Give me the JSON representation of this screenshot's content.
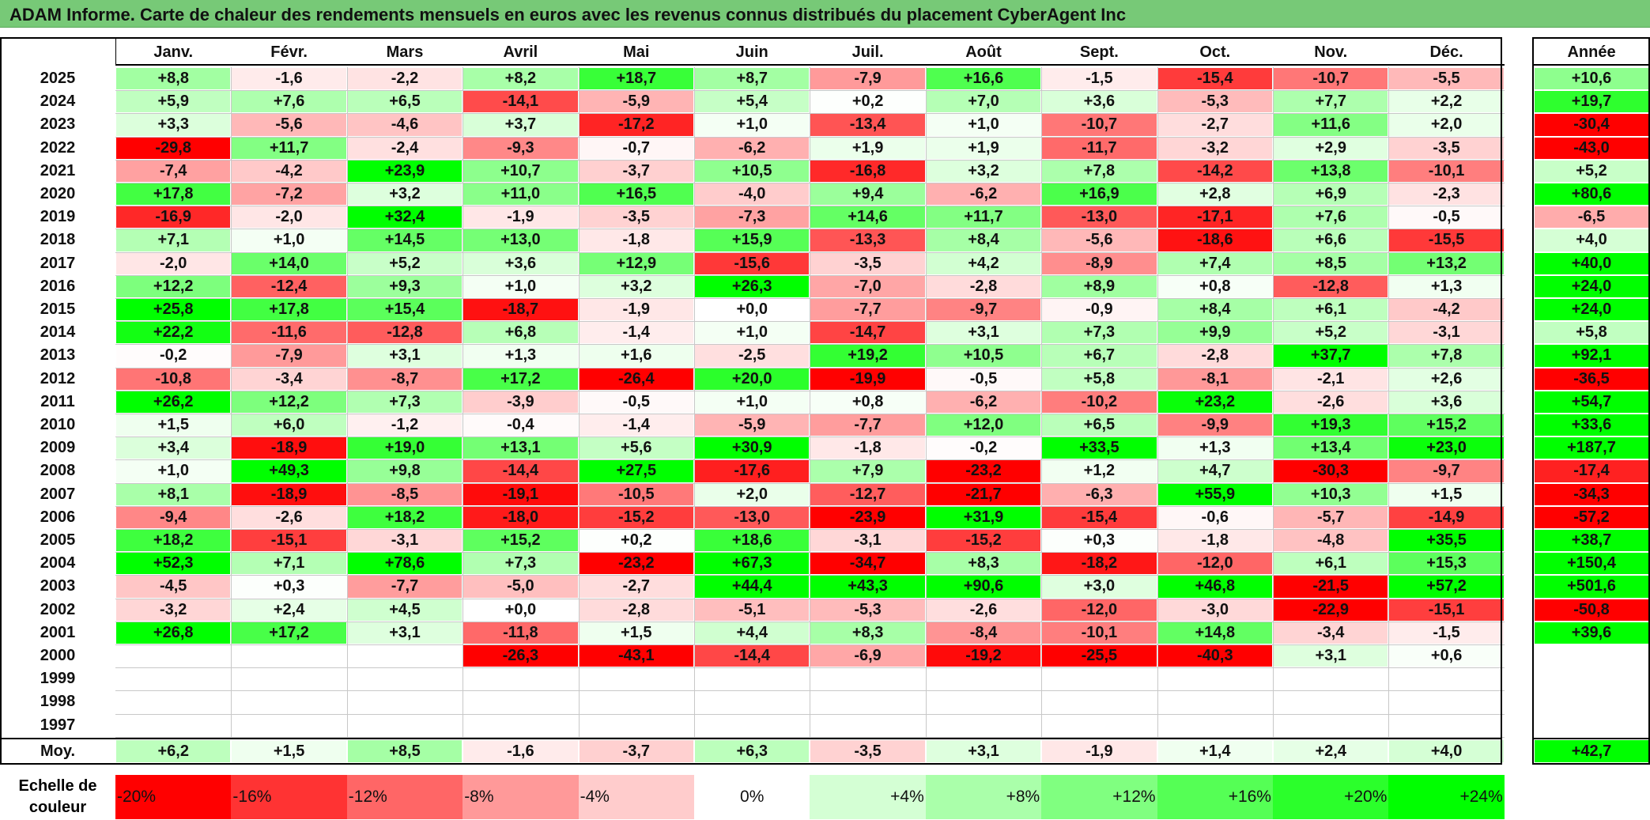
{
  "title": "ADAM Informe. Carte de chaleur des rendements mensuels en euros avec les revenus connus distribués du placement CyberAgent Inc",
  "chart_data": {
    "type": "heatmap",
    "months": [
      "Janv.",
      "Févr.",
      "Mars",
      "Avril",
      "Mai",
      "Juin",
      "Juil.",
      "Août",
      "Sept.",
      "Oct.",
      "Nov.",
      "Déc."
    ],
    "annual_header": "Année",
    "rows": [
      {
        "year": "2025",
        "values": [
          "+8,8",
          "-1,6",
          "-2,2",
          "+8,2",
          "+18,7",
          "+8,7",
          "-7,9",
          "+16,6",
          "-1,5",
          "-15,4",
          "-10,7",
          "-5,5"
        ],
        "annual": "+10,6"
      },
      {
        "year": "2024",
        "values": [
          "+5,9",
          "+7,6",
          "+6,5",
          "-14,1",
          "-5,9",
          "+5,4",
          "+0,2",
          "+7,0",
          "+3,6",
          "-5,3",
          "+7,7",
          "+2,2"
        ],
        "annual": "+19,7"
      },
      {
        "year": "2023",
        "values": [
          "+3,3",
          "-5,6",
          "-4,6",
          "+3,7",
          "-17,2",
          "+1,0",
          "-13,4",
          "+1,0",
          "-10,7",
          "-2,7",
          "+11,6",
          "+2,0"
        ],
        "annual": "-30,4"
      },
      {
        "year": "2022",
        "values": [
          "-29,8",
          "+11,7",
          "-2,4",
          "-9,3",
          "-0,7",
          "-6,2",
          "+1,9",
          "+1,9",
          "-11,7",
          "-3,2",
          "+2,9",
          "-3,5"
        ],
        "annual": "-43,0"
      },
      {
        "year": "2021",
        "values": [
          "-7,4",
          "-4,2",
          "+23,9",
          "+10,7",
          "-3,7",
          "+10,5",
          "-16,8",
          "+3,2",
          "+7,8",
          "-14,2",
          "+13,8",
          "-10,1"
        ],
        "annual": "+5,2"
      },
      {
        "year": "2020",
        "values": [
          "+17,8",
          "-7,2",
          "+3,2",
          "+11,0",
          "+16,5",
          "-4,0",
          "+9,4",
          "-6,2",
          "+16,9",
          "+2,8",
          "+6,9",
          "-2,3"
        ],
        "annual": "+80,6"
      },
      {
        "year": "2019",
        "values": [
          "-16,9",
          "-2,0",
          "+32,4",
          "-1,9",
          "-3,5",
          "-7,3",
          "+14,6",
          "+11,7",
          "-13,0",
          "-17,1",
          "+7,6",
          "-0,5"
        ],
        "annual": "-6,5"
      },
      {
        "year": "2018",
        "values": [
          "+7,1",
          "+1,0",
          "+14,5",
          "+13,0",
          "-1,8",
          "+15,9",
          "-13,3",
          "+8,4",
          "-5,6",
          "-18,6",
          "+6,6",
          "-15,5"
        ],
        "annual": "+4,0"
      },
      {
        "year": "2017",
        "values": [
          "-2,0",
          "+14,0",
          "+5,2",
          "+3,6",
          "+12,9",
          "-15,6",
          "-3,5",
          "+4,2",
          "-8,9",
          "+7,4",
          "+8,5",
          "+13,2"
        ],
        "annual": "+40,0"
      },
      {
        "year": "2016",
        "values": [
          "+12,2",
          "-12,4",
          "+9,3",
          "+1,0",
          "+3,2",
          "+26,3",
          "-7,0",
          "-2,8",
          "+8,9",
          "+0,8",
          "-12,8",
          "+1,3"
        ],
        "annual": "+24,0"
      },
      {
        "year": "2015",
        "values": [
          "+25,8",
          "+17,8",
          "+15,4",
          "-18,7",
          "-1,9",
          "+0,0",
          "-7,7",
          "-9,7",
          "-0,9",
          "+8,4",
          "+6,1",
          "-4,2"
        ],
        "annual": "+24,0"
      },
      {
        "year": "2014",
        "values": [
          "+22,2",
          "-11,6",
          "-12,8",
          "+6,8",
          "-1,4",
          "+1,0",
          "-14,7",
          "+3,1",
          "+7,3",
          "+9,9",
          "+5,2",
          "-3,1"
        ],
        "annual": "+5,8"
      },
      {
        "year": "2013",
        "values": [
          "-0,2",
          "-7,9",
          "+3,1",
          "+1,3",
          "+1,6",
          "-2,5",
          "+19,2",
          "+10,5",
          "+6,7",
          "-2,8",
          "+37,7",
          "+7,8"
        ],
        "annual": "+92,1"
      },
      {
        "year": "2012",
        "values": [
          "-10,8",
          "-3,4",
          "-8,7",
          "+17,2",
          "-26,4",
          "+20,0",
          "-19,9",
          "-0,5",
          "+5,8",
          "-8,1",
          "-2,1",
          "+2,6"
        ],
        "annual": "-36,5"
      },
      {
        "year": "2011",
        "values": [
          "+26,2",
          "+12,2",
          "+7,3",
          "-3,9",
          "-0,5",
          "+1,0",
          "+0,8",
          "-6,2",
          "-10,2",
          "+23,2",
          "-2,6",
          "+3,6"
        ],
        "annual": "+54,7"
      },
      {
        "year": "2010",
        "values": [
          "+1,5",
          "+6,0",
          "-1,2",
          "-0,4",
          "-1,4",
          "-5,9",
          "-7,7",
          "+12,0",
          "+6,5",
          "-9,9",
          "+19,3",
          "+15,2"
        ],
        "annual": "+33,6"
      },
      {
        "year": "2009",
        "values": [
          "+3,4",
          "-18,9",
          "+19,0",
          "+13,1",
          "+5,6",
          "+30,9",
          "-1,8",
          "-0,2",
          "+33,5",
          "+1,3",
          "+13,4",
          "+23,0"
        ],
        "annual": "+187,7"
      },
      {
        "year": "2008",
        "values": [
          "+1,0",
          "+49,3",
          "+9,8",
          "-14,4",
          "+27,5",
          "-17,6",
          "+7,9",
          "-23,2",
          "+1,2",
          "+4,7",
          "-30,3",
          "-9,7"
        ],
        "annual": "-17,4"
      },
      {
        "year": "2007",
        "values": [
          "+8,1",
          "-18,9",
          "-8,5",
          "-19,1",
          "-10,5",
          "+2,0",
          "-12,7",
          "-21,7",
          "-6,3",
          "+55,9",
          "+10,3",
          "+1,5"
        ],
        "annual": "-34,3"
      },
      {
        "year": "2006",
        "values": [
          "-9,4",
          "-2,6",
          "+18,2",
          "-18,0",
          "-15,2",
          "-13,0",
          "-23,9",
          "+31,9",
          "-15,4",
          "-0,6",
          "-5,7",
          "-14,9"
        ],
        "annual": "-57,2"
      },
      {
        "year": "2005",
        "values": [
          "+18,2",
          "-15,1",
          "-3,1",
          "+15,2",
          "+0,2",
          "+18,6",
          "-3,1",
          "-15,2",
          "+0,3",
          "-1,8",
          "-4,8",
          "+35,5"
        ],
        "annual": "+38,7"
      },
      {
        "year": "2004",
        "values": [
          "+52,3",
          "+7,1",
          "+78,6",
          "+7,3",
          "-23,2",
          "+67,3",
          "-34,7",
          "+8,3",
          "-18,2",
          "-12,0",
          "+6,1",
          "+15,3"
        ],
        "annual": "+150,4"
      },
      {
        "year": "2003",
        "values": [
          "-4,5",
          "+0,3",
          "-7,7",
          "-5,0",
          "-2,7",
          "+44,4",
          "+43,3",
          "+90,6",
          "+3,0",
          "+46,8",
          "-21,5",
          "+57,2"
        ],
        "annual": "+501,6"
      },
      {
        "year": "2002",
        "values": [
          "-3,2",
          "+2,4",
          "+4,5",
          "+0,0",
          "-2,8",
          "-5,1",
          "-5,3",
          "-2,6",
          "-12,0",
          "-3,0",
          "-22,9",
          "-15,1"
        ],
        "annual": "-50,8"
      },
      {
        "year": "2001",
        "values": [
          "+26,8",
          "+17,2",
          "+3,1",
          "-11,8",
          "+1,5",
          "+4,4",
          "+8,3",
          "-8,4",
          "-10,1",
          "+14,8",
          "-3,4",
          "-1,5"
        ],
        "annual": "+39,6"
      },
      {
        "year": "2000",
        "values": [
          "",
          "",
          "",
          "-26,3",
          "-43,1",
          "-14,4",
          "-6,9",
          "-19,2",
          "-25,5",
          "-40,3",
          "+3,1",
          "+0,6"
        ],
        "annual": ""
      },
      {
        "year": "1999",
        "values": [
          "",
          "",
          "",
          "",
          "",
          "",
          "",
          "",
          "",
          "",
          "",
          ""
        ],
        "annual": ""
      },
      {
        "year": "1998",
        "values": [
          "",
          "",
          "",
          "",
          "",
          "",
          "",
          "",
          "",
          "",
          "",
          ""
        ],
        "annual": ""
      },
      {
        "year": "1997",
        "values": [
          "",
          "",
          "",
          "",
          "",
          "",
          "",
          "",
          "",
          "",
          "",
          ""
        ],
        "annual": ""
      }
    ],
    "average": {
      "label": "Moy.",
      "values": [
        "+6,2",
        "+1,5",
        "+8,5",
        "-1,6",
        "-3,7",
        "+6,3",
        "-3,5",
        "+3,1",
        "-1,9",
        "+1,4",
        "+2,4",
        "+4,0"
      ],
      "annual": "+42,7"
    },
    "legend": {
      "label_line1": "Echelle de",
      "label_line2": "couleur",
      "entries": [
        {
          "label": "-20%",
          "color": "#ff0000"
        },
        {
          "label": "-16%",
          "color": "#ff3333"
        },
        {
          "label": "-12%",
          "color": "#ff6666"
        },
        {
          "label": "-8%",
          "color": "#ff9999"
        },
        {
          "label": "-4%",
          "color": "#ffcccc"
        },
        {
          "label": "0%",
          "color": "#ffffff"
        },
        {
          "label": "+4%",
          "color": "#d4ffd4"
        },
        {
          "label": "+8%",
          "color": "#aaffaa"
        },
        {
          "label": "+12%",
          "color": "#80ff80"
        },
        {
          "label": "+16%",
          "color": "#55ff55"
        },
        {
          "label": "+20%",
          "color": "#2bff2b"
        },
        {
          "label": "+24%",
          "color": "#00ff00"
        }
      ]
    }
  }
}
